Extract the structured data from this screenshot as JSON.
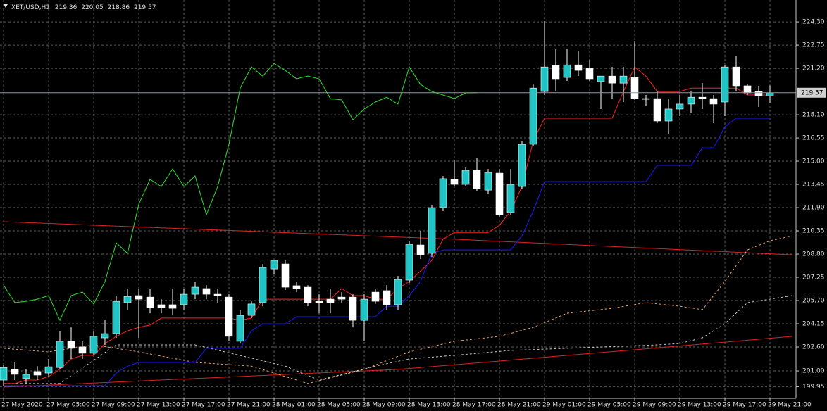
{
  "chart_data": {
    "type": "candlestick",
    "symbol": "XET/USD,H1",
    "categories": [
      "27 May 2020",
      null,
      null,
      null,
      "27 May 05:00",
      null,
      null,
      null,
      "27 May 09:00",
      null,
      null,
      null,
      "27 May 13:00",
      null,
      null,
      null,
      "27 May 17:00",
      null,
      null,
      null,
      "27 May 21:00",
      null,
      null,
      null,
      "28 May 01:00",
      null,
      null,
      null,
      "28 May 05:00",
      null,
      null,
      null,
      "28 May 09:00",
      null,
      null,
      null,
      "28 May 13:00",
      null,
      null,
      null,
      "28 May 17:00",
      null,
      null,
      null,
      "28 May 21:00",
      null,
      null,
      null,
      "29 May 01:00",
      null,
      null,
      null,
      "29 May 05:00",
      null,
      null,
      null,
      "29 May 09:00",
      null,
      null,
      null,
      "29 May 13:00",
      null,
      null,
      null,
      "29 May 17:00",
      null,
      null,
      null,
      "29 May 21:00",
      null,
      null
    ],
    "open": [
      200.39,
      201.1,
      200.49,
      200.96,
      200.86,
      201.23,
      202.98,
      202.6,
      202.18,
      203.21,
      203.49,
      205.56,
      206.03,
      205.93,
      205.42,
      205.42,
      205.42,
      206.12,
      206.5,
      206.12,
      205.93,
      202.98,
      204.71,
      205.56,
      207.81,
      208.14,
      206.69,
      206.59,
      205.65,
      205.79,
      205.93,
      205.93,
      204.38,
      206.26,
      206.36,
      205.42,
      207.06,
      209.41,
      208.85,
      211.9,
      213.78,
      213.45,
      214.39,
      213.07,
      214.2,
      211.57,
      213.31,
      216.13,
      219.65,
      221.39,
      220.59,
      221.43,
      221.2,
      220.31,
      220.68,
      220.21,
      220.59,
      219.18,
      219.18,
      217.68,
      218.48,
      218.81,
      219.27,
      219.18,
      218.95,
      221.29,
      220.03,
      219.65,
      219.36,
      null,
      null
    ],
    "high": [
      201.42,
      201.57,
      201.1,
      201.32,
      201.8,
      203.68,
      203.91,
      202.98,
      203.68,
      204.38,
      206.03,
      206.5,
      206.5,
      206.5,
      205.79,
      206.5,
      206.5,
      206.97,
      206.73,
      206.5,
      206.12,
      205.09,
      205.65,
      208.14,
      208.38,
      208.38,
      206.97,
      206.73,
      206.12,
      206.5,
      206.26,
      206.12,
      206.12,
      206.5,
      206.73,
      207.34,
      209.69,
      210.35,
      212.04,
      214.01,
      215.05,
      214.58,
      215.19,
      214.48,
      214.48,
      214.48,
      216.36,
      220.12,
      224.35,
      222.47,
      222.47,
      222.37,
      221.76,
      220.68,
      221.29,
      221.29,
      223.03,
      219.42,
      219.65,
      219.18,
      219.42,
      219.65,
      220.21,
      219.42,
      221.43,
      222.0,
      220.12,
      220.03,
      220.05,
      null,
      null
    ],
    "low": [
      200.02,
      200.39,
      200.16,
      200.39,
      200.63,
      201.1,
      201.8,
      201.8,
      202.04,
      202.74,
      203.21,
      205.09,
      203.21,
      204.85,
      204.85,
      204.71,
      205.09,
      205.79,
      205.79,
      205.56,
      202.98,
      202.83,
      204.53,
      205.32,
      207.44,
      206.4,
      206.26,
      205.32,
      204.85,
      204.85,
      205.56,
      203.91,
      202.98,
      205.47,
      205.09,
      205.09,
      206.87,
      208.47,
      208.61,
      211.67,
      213.31,
      213.31,
      212.98,
      212.84,
      211.29,
      211.43,
      213.17,
      215.99,
      219.42,
      219.65,
      220.36,
      220.68,
      220.36,
      218.48,
      219.18,
      218.95,
      219.09,
      218.71,
      217.54,
      216.83,
      218.01,
      218.24,
      218.48,
      217.54,
      218.01,
      219.65,
      219.42,
      218.62,
      218.86,
      null,
      null
    ],
    "close": [
      201.23,
      200.77,
      200.77,
      200.72,
      201.28,
      202.98,
      202.51,
      202.18,
      203.31,
      203.49,
      205.65,
      205.98,
      205.79,
      205.23,
      205.23,
      205.18,
      206.12,
      206.59,
      206.12,
      206.03,
      203.31,
      204.71,
      205.47,
      207.91,
      208.38,
      206.59,
      206.5,
      205.56,
      205.56,
      205.56,
      205.79,
      204.38,
      205.79,
      205.65,
      205.42,
      207.11,
      209.46,
      208.75,
      211.9,
      213.83,
      213.45,
      214.39,
      213.17,
      214.25,
      211.43,
      213.45,
      216.13,
      219.88,
      221.29,
      220.5,
      221.43,
      221.06,
      220.5,
      220.68,
      220.21,
      220.68,
      219.18,
      219.13,
      217.68,
      218.48,
      218.81,
      219.27,
      219.18,
      218.81,
      221.29,
      220.03,
      219.56,
      219.37,
      219.57,
      null,
      null
    ],
    "up_color": "#1fc4c4",
    "down_color": "#ffffff",
    "wick_color": "#ffffff",
    "ylim": [
      199.17,
      225.62
    ],
    "yticks": [
      {
        "value": 224.3,
        "label": "224.30"
      },
      222.75,
      {
        "value": 221.2,
        "label": "221.20"
      },
      {
        "value": 218.1,
        "label": "218.10"
      },
      216.55,
      {
        "value": 215,
        "label": "215.00"
      },
      213.45,
      {
        "value": 211.9,
        "label": "211.90"
      },
      210.35,
      {
        "value": 208.8,
        "label": "208.80"
      },
      207.25,
      {
        "value": 205.7,
        "label": "205.70"
      },
      204.15,
      {
        "value": 202.6,
        "label": "202.60"
      },
      {
        "value": 201,
        "label": "201.00"
      },
      199.95
    ],
    "grid": true,
    "overlays": [
      {
        "color": "#e02020",
        "dash": "none",
        "x": [
          0,
          40,
          70
        ],
        "values": [
          210.96,
          209.79,
          208.75
        ]
      },
      {
        "color": "#e02020",
        "dash": "none",
        "x": [
          0,
          35,
          56,
          70
        ],
        "values": [
          199.92,
          201.1,
          202.41,
          203.31
        ]
      },
      {
        "color": "#e8a060",
        "dash": "3,3",
        "x": [
          0,
          4,
          8,
          12,
          17,
          22,
          27,
          32,
          36,
          40,
          44,
          47,
          50,
          54,
          57,
          60,
          62,
          64,
          66,
          68,
          70
        ],
        "values": [
          202.51,
          202.27,
          202.74,
          202.27,
          201.57,
          201.32,
          200.16,
          201.1,
          202.27,
          202.98,
          203.31,
          203.91,
          204.85,
          205.18,
          205.56,
          205.32,
          205.09,
          206.97,
          209.08,
          209.69,
          210.02
        ]
      },
      {
        "color": "#c8c8c8",
        "dash": "3,3",
        "x": [
          0,
          5,
          10,
          17,
          25,
          28,
          33,
          36,
          40,
          45,
          50,
          55,
          58,
          60,
          62,
          64,
          66,
          68,
          70
        ],
        "values": [
          200.16,
          200.16,
          202.74,
          202.74,
          201.32,
          200.39,
          201.32,
          201.8,
          202.04,
          202.37,
          202.51,
          202.65,
          202.74,
          202.83,
          203.21,
          204.15,
          205.56,
          205.79,
          206.03
        ]
      },
      {
        "color": "#ff2020",
        "dash": "none",
        "values": [
          200.16,
          200.16,
          200.39,
          200.39,
          200.63,
          201.1,
          201.8,
          202.04,
          202.04,
          202.83,
          203.31,
          203.68,
          203.91,
          204.06,
          204.53,
          204.53,
          204.53,
          204.53,
          204.53,
          204.53,
          204.53,
          204.38,
          204.53,
          205.79,
          205.79,
          205.79,
          205.79,
          205.79,
          205.79,
          205.79,
          206.5,
          206.03,
          206.03,
          205.79,
          205.79,
          206.5,
          206.97,
          207.67,
          208.38,
          209.79,
          210.25,
          210.25,
          210.25,
          210.25,
          210.72,
          211.67,
          213.31,
          216.36,
          217.87,
          217.87,
          217.87,
          217.87,
          217.87,
          217.87,
          217.87,
          219.65,
          221.29,
          220.68,
          219.65,
          219.65,
          219.65,
          219.88,
          219.88,
          219.88,
          219.88,
          219.88,
          219.42,
          219.42,
          219.42,
          null,
          null
        ]
      },
      {
        "color": "#1a1aff",
        "dash": "none",
        "values": [
          200.02,
          200.02,
          200.02,
          200.02,
          200.02,
          200.02,
          200.02,
          200.02,
          200.02,
          200.02,
          200.86,
          201.32,
          201.57,
          201.57,
          201.57,
          201.57,
          201.57,
          201.57,
          202.51,
          202.51,
          202.51,
          202.51,
          203.68,
          204.15,
          204.15,
          204.15,
          204.62,
          204.62,
          204.62,
          204.62,
          204.62,
          204.62,
          204.62,
          204.62,
          205.32,
          205.32,
          206.03,
          206.97,
          208.85,
          209.08,
          209.08,
          209.08,
          209.08,
          209.08,
          209.08,
          209.08,
          210.02,
          211.67,
          213.64,
          213.64,
          213.64,
          213.64,
          213.64,
          213.64,
          213.64,
          213.64,
          213.64,
          213.64,
          214.72,
          214.72,
          214.72,
          214.72,
          215.89,
          215.89,
          217.3,
          217.87,
          217.87,
          217.87,
          217.87,
          null,
          null
        ]
      },
      {
        "color": "#30e030",
        "dash": "none",
        "values": [
          206.73,
          205.56,
          205.65,
          205.79,
          206.03,
          204.38,
          206.03,
          206.26,
          205.47,
          206.97,
          209.55,
          208.85,
          212.13,
          213.78,
          213.31,
          214.48,
          213.31,
          214.01,
          211.43,
          213.31,
          216.13,
          219.88,
          221.29,
          220.68,
          221.53,
          221.06,
          220.5,
          220.68,
          220.5,
          219.18,
          219.09,
          217.77,
          218.48,
          218.95,
          219.27,
          218.81,
          221.29,
          220.12,
          219.65,
          219.42,
          219.18,
          219.56,
          219.57,
          null,
          null,
          null,
          null,
          null,
          null,
          null,
          null,
          null,
          null,
          null,
          null,
          null,
          null,
          null,
          null,
          null,
          null,
          null,
          null,
          null,
          null,
          null,
          null,
          null,
          null,
          null,
          null
        ]
      }
    ]
  }
}
